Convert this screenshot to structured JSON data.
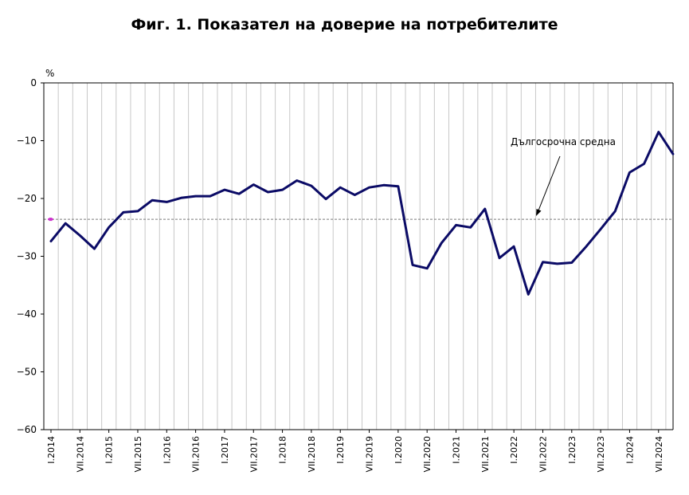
{
  "chart_data": {
    "type": "line",
    "title": "Фиг. 1. Показател на доверие на потребителите",
    "ylabel": "%",
    "ylim": [
      -60,
      0
    ],
    "yticks": [
      0,
      -10,
      -20,
      -30,
      -40,
      -50,
      -60
    ],
    "grid": "vertical",
    "x_tick_labels": [
      "I.2014",
      "VII.2014",
      "I.2015",
      "VII.2015",
      "I.2016",
      "VII.2016",
      "I.2017",
      "VII.2017",
      "I.2018",
      "VII.2018",
      "I.2019",
      "VII.2019",
      "I.2020",
      "VII.2020",
      "I.2021",
      "VII.2021",
      "I.2022",
      "VII.2022",
      "I.2023",
      "VII.2023",
      "I.2024",
      "VII.2024"
    ],
    "x": [
      "I.2014",
      "IV.2014",
      "VII.2014",
      "X.2014",
      "I.2015",
      "IV.2015",
      "VII.2015",
      "X.2015",
      "I.2016",
      "IV.2016",
      "VII.2016",
      "X.2016",
      "I.2017",
      "IV.2017",
      "VII.2017",
      "X.2017",
      "I.2018",
      "IV.2018",
      "VII.2018",
      "X.2018",
      "I.2019",
      "IV.2019",
      "VII.2019",
      "X.2019",
      "I.2020",
      "IV.2020",
      "VII.2020",
      "X.2020",
      "I.2021",
      "IV.2021",
      "VII.2021",
      "X.2021",
      "I.2022",
      "IV.2022",
      "VII.2022",
      "X.2022",
      "I.2023",
      "IV.2023",
      "VII.2023",
      "X.2023",
      "I.2024",
      "IV.2024",
      "VII.2024",
      "X.2024"
    ],
    "series": [
      {
        "color": "#0b0b66",
        "values": [
          -27.4,
          -24.3,
          -26.4,
          -28.7,
          -25.0,
          -22.4,
          -22.2,
          -20.3,
          -20.6,
          -19.9,
          -19.6,
          -19.6,
          -18.5,
          -19.2,
          -17.6,
          -18.9,
          -18.5,
          -16.9,
          -17.8,
          -20.1,
          -18.1,
          -19.4,
          -18.1,
          -17.7,
          -17.9,
          -31.5,
          -32.1,
          -27.7,
          -24.6,
          -25.0,
          -21.8,
          -30.3,
          -28.3,
          -36.6,
          -31.0,
          -31.3,
          -31.1,
          -28.3,
          -25.3,
          -22.2,
          -15.5,
          -14.0,
          -8.5,
          -12.3
        ]
      }
    ],
    "reference_line": {
      "value": -23.6,
      "label": "Дългосрочна средна",
      "color": "#7a7a7a",
      "marker_color": "#cc33cc"
    }
  }
}
